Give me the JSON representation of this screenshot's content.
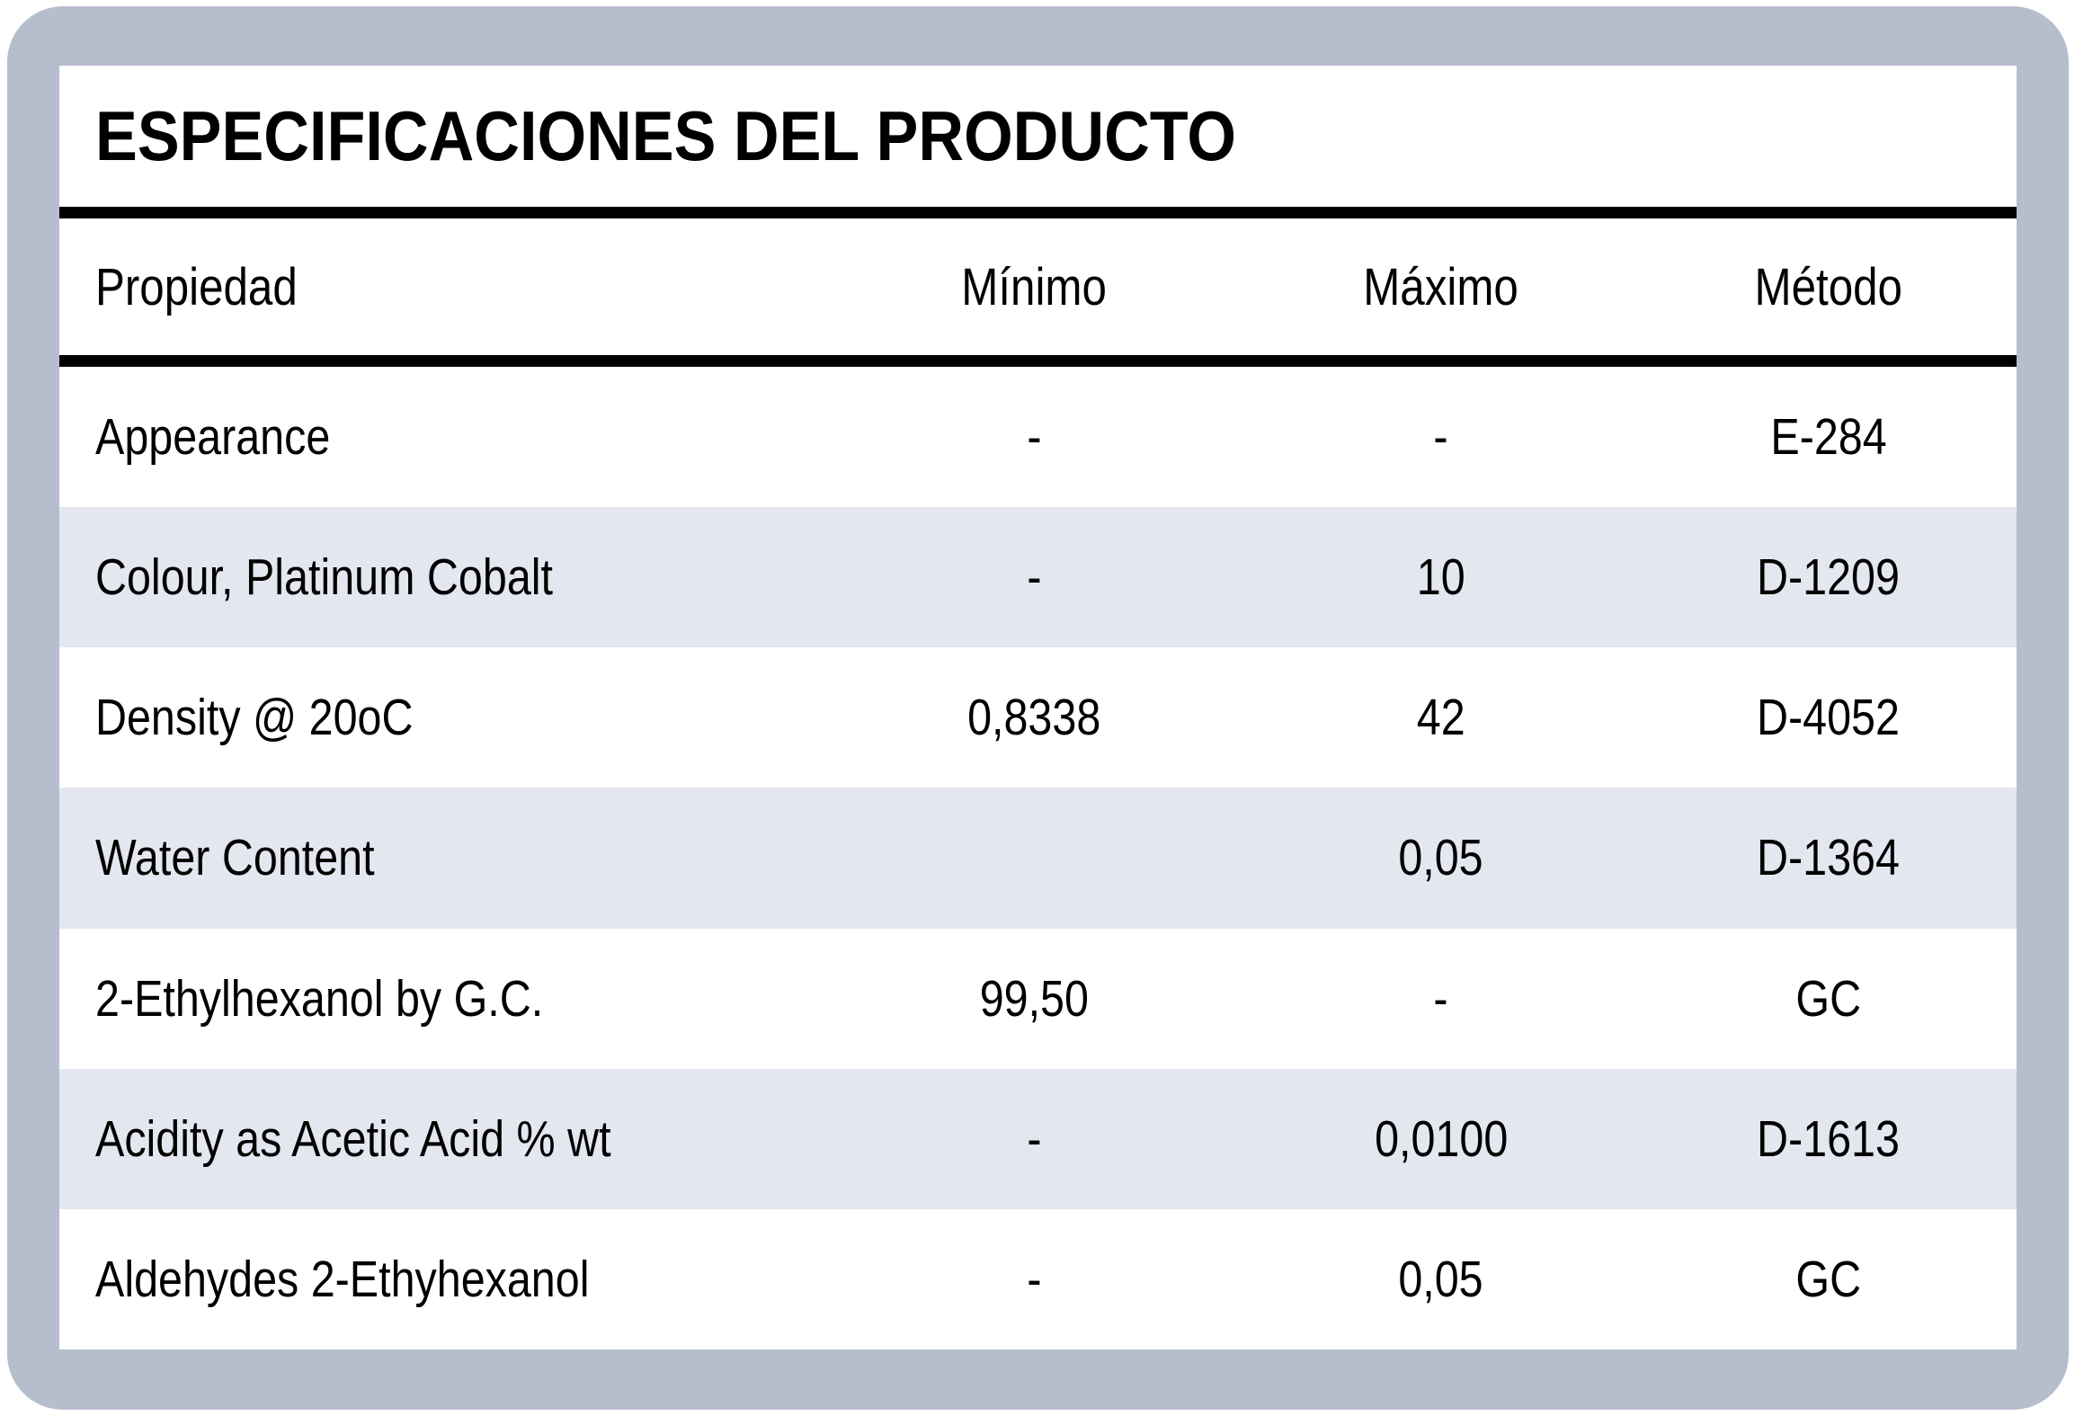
{
  "title": "ESPECIFICACIONES DEL PRODUCTO",
  "colors": {
    "frame": "#B6BDCC",
    "panel": "#FFFFFF",
    "stripe": "#E4E7F0",
    "rule": "#000000",
    "text": "#000000"
  },
  "table": {
    "columns": [
      "Propiedad",
      "Mínimo",
      "Máximo",
      "Método"
    ],
    "rows": [
      {
        "property": "Appearance",
        "min": "-",
        "max": "-",
        "method": "E-284"
      },
      {
        "property": "Colour, Platinum Cobalt",
        "min": "-",
        "max": "10",
        "method": "D-1209"
      },
      {
        "property": "Density @ 20oC",
        "min": "0,8338",
        "max": "42",
        "method": "D-4052"
      },
      {
        "property": "Water Content",
        "min": "",
        "max": "0,05",
        "method": "D-1364"
      },
      {
        "property": "2-Ethylhexanol by G.C.",
        "min": "99,50",
        "max": "-",
        "method": "GC"
      },
      {
        "property": "Acidity as Acetic Acid % wt",
        "min": "-",
        "max": "0,0100",
        "method": "D-1613"
      },
      {
        "property": "Aldehydes 2-Ethyhexanol",
        "min": "-",
        "max": "0,05",
        "method": "GC"
      }
    ]
  }
}
